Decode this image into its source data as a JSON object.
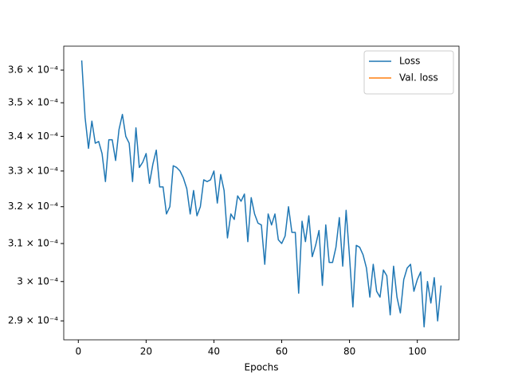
{
  "chart_data": {
    "type": "line",
    "xlabel": "Epochs",
    "x": [
      1,
      2,
      3,
      4,
      5,
      6,
      7,
      8,
      9,
      10,
      11,
      12,
      13,
      14,
      15,
      16,
      17,
      18,
      19,
      20,
      21,
      22,
      23,
      24,
      25,
      26,
      27,
      28,
      29,
      30,
      31,
      32,
      33,
      34,
      35,
      36,
      37,
      38,
      39,
      40,
      41,
      42,
      43,
      44,
      45,
      46,
      47,
      48,
      49,
      50,
      51,
      52,
      53,
      54,
      55,
      56,
      57,
      58,
      59,
      60,
      61,
      62,
      63,
      64,
      65,
      66,
      67,
      68,
      69,
      70,
      71,
      72,
      73,
      74,
      75,
      76,
      77,
      78,
      79,
      80,
      81,
      82,
      83,
      84,
      85,
      86,
      87,
      88,
      89,
      90,
      91,
      92,
      93,
      94,
      95,
      96,
      97,
      98,
      99,
      100,
      101,
      102,
      103,
      104,
      105,
      106,
      107
    ],
    "series": [
      {
        "name": "Loss",
        "color": "#1f77b4",
        "values": [
          0.000363,
          0.0003455,
          0.0003365,
          0.0003445,
          0.000338,
          0.0003385,
          0.000335,
          0.000327,
          0.000339,
          0.000339,
          0.000333,
          0.000342,
          0.0003465,
          0.00034,
          0.000338,
          0.000327,
          0.0003425,
          0.000331,
          0.0003325,
          0.000335,
          0.0003265,
          0.000332,
          0.000336,
          0.0003255,
          0.0003255,
          0.000318,
          0.00032,
          0.0003315,
          0.000331,
          0.00033,
          0.000328,
          0.000325,
          0.000318,
          0.0003245,
          0.0003175,
          0.00032,
          0.0003275,
          0.000327,
          0.0003275,
          0.00033,
          0.000321,
          0.000329,
          0.0003245,
          0.0003115,
          0.000318,
          0.0003165,
          0.000323,
          0.0003215,
          0.0003235,
          0.0003105,
          0.0003225,
          0.000318,
          0.0003155,
          0.000315,
          0.0003045,
          0.000318,
          0.000315,
          0.000318,
          0.000311,
          0.00031,
          0.000312,
          0.00032,
          0.000313,
          0.000313,
          0.000297,
          0.000316,
          0.0003105,
          0.0003175,
          0.0003065,
          0.0003095,
          0.0003135,
          0.000299,
          0.000315,
          0.000305,
          0.000305,
          0.000309,
          0.000317,
          0.000304,
          0.000319,
          0.0003065,
          0.0002935,
          0.0003095,
          0.000309,
          0.000307,
          0.0003035,
          0.000296,
          0.0003045,
          0.0002975,
          0.000296,
          0.000303,
          0.0003015,
          0.0002915,
          0.000304,
          0.000296,
          0.000292,
          0.0003005,
          0.0003035,
          0.0003045,
          0.0002975,
          0.0003005,
          0.0003025,
          0.0002885,
          0.0003,
          0.0002945,
          0.000301,
          0.00029,
          0.000299
        ]
      },
      {
        "name": "Val. loss",
        "color": "#ff7f0e",
        "values": [
          null,
          null,
          null,
          null,
          null,
          null,
          null,
          null,
          null,
          null,
          null,
          null,
          null,
          null,
          null,
          null,
          null,
          null,
          null,
          null,
          null,
          null,
          null,
          null,
          null,
          null,
          null,
          null,
          null,
          null,
          null,
          null,
          null,
          null,
          null,
          null,
          null,
          null,
          null,
          null,
          null,
          null,
          null,
          null,
          null,
          null,
          null,
          null,
          null,
          null,
          null,
          null,
          null,
          null,
          null,
          null,
          null,
          null,
          null,
          null,
          null,
          null,
          null,
          null,
          null,
          null,
          null,
          null,
          null,
          null,
          null,
          null,
          null,
          null,
          null,
          null,
          null,
          null,
          null,
          null,
          null,
          null,
          null,
          null,
          null,
          null,
          null,
          null,
          null,
          null,
          null,
          null,
          null,
          null,
          null,
          null,
          null,
          null,
          null,
          null,
          null,
          null,
          null,
          null,
          null,
          null,
          null
        ]
      }
    ],
    "xlim": [
      -4.3,
      112.3
    ],
    "xticks": [
      0,
      20,
      40,
      60,
      80,
      100
    ],
    "ylim": [
      0.0002853,
      0.0003675
    ],
    "yscale": "log",
    "yticks": [
      {
        "value": 0.00029,
        "label": "2.9 × 10⁻⁴"
      },
      {
        "value": 0.0003,
        "label": "3 × 10⁻⁴"
      },
      {
        "value": 0.00031,
        "label": "3.1 × 10⁻⁴"
      },
      {
        "value": 0.00032,
        "label": "3.2 × 10⁻⁴"
      },
      {
        "value": 0.00033,
        "label": "3.3 × 10⁻⁴"
      },
      {
        "value": 0.00034,
        "label": "3.4 × 10⁻⁴"
      },
      {
        "value": 0.00035,
        "label": "3.5 × 10⁻⁴"
      },
      {
        "value": 0.00036,
        "label": "3.6 × 10⁻⁴"
      }
    ],
    "legend": "upper right"
  }
}
